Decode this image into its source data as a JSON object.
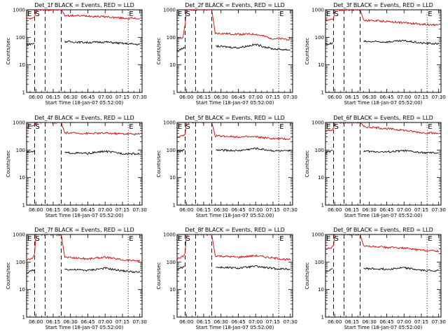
{
  "colors": {
    "events": "#000000",
    "lld": "#d40000",
    "axis": "#000000",
    "background": "#ffffff"
  },
  "layout_info": {
    "rows": 3,
    "cols": 3,
    "scale": "log"
  },
  "panels": [
    {
      "title": "Det_1f BLACK = Events, RED = LLD",
      "xlabel": "Start Time (18-Jan-07 05:52:00)",
      "ylabel": "Counts/sec",
      "x_tick_labels": [
        "06:00",
        "06:15",
        "06:30",
        "06:45",
        "07:00",
        "07:15",
        "07:30"
      ],
      "y_tick_labels": [
        "1",
        "10",
        "100",
        "1000"
      ],
      "markers": [
        "E",
        "S",
        "E"
      ]
    },
    {
      "title": "Det_2f BLACK = Events, RED = LLD",
      "xlabel": "Start Time (18-Jan-07 05:52:00)",
      "ylabel": "Counts/sec",
      "x_tick_labels": [
        "06:00",
        "06:15",
        "06:30",
        "06:45",
        "07:00",
        "07:15",
        "07:30"
      ],
      "y_tick_labels": [
        "1",
        "10",
        "100",
        "1000"
      ],
      "markers": [
        "E",
        "S",
        "E"
      ]
    },
    {
      "title": "Det_3f BLACK = Events, RED = LLD",
      "xlabel": "Start Time (18-Jan-07 05:52:00)",
      "ylabel": "Counts/sec",
      "x_tick_labels": [
        "06:00",
        "06:15",
        "06:30",
        "06:45",
        "07:00",
        "07:15",
        "07:30"
      ],
      "y_tick_labels": [
        "1",
        "10",
        "100",
        "1000"
      ],
      "markers": [
        "E",
        "S",
        "E"
      ]
    },
    {
      "title": "Det_4f BLACK = Events, RED = LLD",
      "xlabel": "Start Time (18-Jan-07 05:52:00)",
      "ylabel": "Counts/sec",
      "x_tick_labels": [
        "06:00",
        "06:15",
        "06:30",
        "06:45",
        "07:00",
        "07:15",
        "07:30"
      ],
      "y_tick_labels": [
        "1",
        "10",
        "100",
        "1000"
      ],
      "markers": [
        "E",
        "S",
        "E"
      ]
    },
    {
      "title": "Det_5f BLACK = Events, RED = LLD",
      "xlabel": "Start Time (18-Jan-07 05:52:00)",
      "ylabel": "Counts/sec",
      "x_tick_labels": [
        "06:00",
        "06:15",
        "06:30",
        "06:45",
        "07:00",
        "07:15",
        "07:30"
      ],
      "y_tick_labels": [
        "1",
        "10",
        "100",
        "1000"
      ],
      "markers": [
        "E",
        "S",
        "E"
      ]
    },
    {
      "title": "Det_6f BLACK = Events, RED = LLD",
      "xlabel": "Start Time (18-Jan-07 05:52:00)",
      "ylabel": "Counts/sec",
      "x_tick_labels": [
        "06:00",
        "06:15",
        "06:30",
        "06:45",
        "07:00",
        "07:15",
        "07:30"
      ],
      "y_tick_labels": [
        "1",
        "10",
        "100",
        "1000"
      ],
      "markers": [
        "E",
        "S",
        "E"
      ]
    },
    {
      "title": "Det_7f BLACK = Events, RED = LLD",
      "xlabel": "Start Time (18-Jan-07 05:52:00)",
      "ylabel": "Counts/sec",
      "x_tick_labels": [
        "06:00",
        "06:15",
        "06:30",
        "06:45",
        "07:00",
        "07:15",
        "07:30"
      ],
      "y_tick_labels": [
        "1",
        "10",
        "100",
        "1000"
      ],
      "markers": [
        "E",
        "S",
        "E"
      ]
    },
    {
      "title": "Det_8f BLACK = Events, RED = LLD",
      "xlabel": "Start Time (18-Jan-07 05:52:00)",
      "ylabel": "Counts/sec",
      "x_tick_labels": [
        "06:00",
        "06:15",
        "06:30",
        "06:45",
        "07:00",
        "07:15",
        "07:30"
      ],
      "y_tick_labels": [
        "1",
        "10",
        "100",
        "1000"
      ],
      "markers": [
        "E",
        "S",
        "E"
      ]
    },
    {
      "title": "Det_9f BLACK = Events, RED = LLD",
      "xlabel": "Start Time (18-Jan-07 05:52:00)",
      "ylabel": "Counts/sec",
      "x_tick_labels": [
        "06:00",
        "06:15",
        "06:30",
        "06:45",
        "07:00",
        "07:15",
        "07:30"
      ],
      "y_tick_labels": [
        "1",
        "10",
        "100",
        "1000"
      ],
      "markers": [
        "E",
        "S",
        "E"
      ]
    }
  ],
  "chart_data": [
    {
      "type": "line",
      "title": "Det_1f BLACK = Events, RED = LLD",
      "xlabel": "Start Time (18-Jan-07 05:52:00)",
      "ylabel": "Counts/sec",
      "yscale": "log",
      "ylim": [
        1,
        1000
      ],
      "xlim": [
        "05:52",
        "07:32"
      ],
      "series": [
        {
          "name": "LLD",
          "color": "#d40000",
          "x": [
            "05:52",
            "05:57",
            "05:59",
            "06:00",
            "06:22",
            "06:25",
            "06:45",
            "07:00",
            "07:15",
            "07:30"
          ],
          "y": [
            480,
            480,
            520,
            1000,
            1000,
            620,
            600,
            560,
            500,
            480
          ]
        },
        {
          "name": "Events",
          "color": "#000000",
          "x": [
            "05:52",
            "05:57",
            "05:59",
            "06:25",
            "06:45",
            "07:00",
            "07:15",
            "07:30"
          ],
          "y": [
            55,
            58,
            62,
            70,
            65,
            68,
            60,
            55
          ]
        }
      ],
      "vlines_dashed": [
        "05:59",
        "06:08",
        "06:22"
      ],
      "vlines_dotted": [
        "07:20"
      ]
    },
    {
      "type": "line",
      "title": "Det_2f BLACK = Events, RED = LLD",
      "xlabel": "Start Time (18-Jan-07 05:52:00)",
      "ylabel": "Counts/sec",
      "yscale": "log",
      "ylim": [
        1,
        1000
      ],
      "xlim": [
        "05:52",
        "07:32"
      ],
      "series": [
        {
          "name": "LLD",
          "color": "#d40000",
          "x": [
            "05:52",
            "05:57",
            "05:59",
            "06:00",
            "06:22",
            "06:25",
            "06:45",
            "07:00",
            "07:15",
            "07:30"
          ],
          "y": [
            85,
            100,
            300,
            1000,
            1000,
            140,
            130,
            130,
            90,
            85
          ]
        },
        {
          "name": "Events",
          "color": "#000000",
          "x": [
            "05:52",
            "05:57",
            "05:59",
            "06:25",
            "06:45",
            "07:00",
            "07:15",
            "07:30"
          ],
          "y": [
            32,
            40,
            45,
            48,
            42,
            55,
            38,
            35
          ]
        }
      ],
      "vlines_dashed": [
        "05:59",
        "06:08",
        "06:22"
      ],
      "vlines_dotted": [
        "07:20"
      ]
    },
    {
      "type": "line",
      "title": "Det_3f BLACK = Events, RED = LLD",
      "xlabel": "Start Time (18-Jan-07 05:52:00)",
      "ylabel": "Counts/sec",
      "yscale": "log",
      "ylim": [
        1,
        1000
      ],
      "xlim": [
        "05:52",
        "07:32"
      ],
      "series": [
        {
          "name": "LLD",
          "color": "#d40000",
          "x": [
            "05:52",
            "05:57",
            "05:59",
            "06:00",
            "06:22",
            "06:25",
            "06:45",
            "07:00",
            "07:15",
            "07:30"
          ],
          "y": [
            420,
            450,
            500,
            1000,
            1000,
            420,
            380,
            340,
            300,
            280
          ]
        },
        {
          "name": "Events",
          "color": "#000000",
          "x": [
            "05:52",
            "05:57",
            "05:59",
            "06:25",
            "06:45",
            "07:00",
            "07:15",
            "07:30"
          ],
          "y": [
            55,
            60,
            68,
            70,
            68,
            75,
            62,
            58
          ]
        }
      ],
      "vlines_dashed": [
        "05:59",
        "06:08",
        "06:22"
      ],
      "vlines_dotted": [
        "07:20"
      ]
    },
    {
      "type": "line",
      "title": "Det_4f BLACK = Events, RED = LLD",
      "xlabel": "Start Time (18-Jan-07 05:52:00)",
      "ylabel": "Counts/sec",
      "yscale": "log",
      "ylim": [
        1,
        1000
      ],
      "xlim": [
        "05:52",
        "07:32"
      ],
      "series": [
        {
          "name": "LLD",
          "color": "#d40000",
          "x": [
            "05:52",
            "05:57",
            "05:59",
            "06:00",
            "06:22",
            "06:25",
            "06:45",
            "07:00",
            "07:15",
            "07:30"
          ],
          "y": [
            700,
            750,
            800,
            1000,
            1000,
            420,
            400,
            410,
            390,
            380
          ]
        },
        {
          "name": "Events",
          "color": "#000000",
          "x": [
            "05:52",
            "05:57",
            "05:59",
            "06:25",
            "06:45",
            "07:00",
            "07:15",
            "07:30"
          ],
          "y": [
            80,
            90,
            95,
            80,
            75,
            90,
            75,
            72
          ]
        }
      ],
      "vlines_dashed": [
        "05:59",
        "06:08",
        "06:22"
      ],
      "vlines_dotted": [
        "07:20"
      ]
    },
    {
      "type": "line",
      "title": "Det_5f BLACK = Events, RED = LLD",
      "xlabel": "Start Time (18-Jan-07 05:52:00)",
      "ylabel": "Counts/sec",
      "yscale": "log",
      "ylim": [
        1,
        1000
      ],
      "xlim": [
        "05:52",
        "07:32"
      ],
      "series": [
        {
          "name": "LLD",
          "color": "#d40000",
          "x": [
            "05:52",
            "05:57",
            "05:59",
            "06:00",
            "06:22",
            "06:25",
            "06:45",
            "07:00",
            "07:15",
            "07:30"
          ],
          "y": [
            300,
            320,
            380,
            1000,
            1000,
            330,
            300,
            300,
            260,
            250
          ]
        },
        {
          "name": "Events",
          "color": "#000000",
          "x": [
            "05:52",
            "05:57",
            "05:59",
            "06:25",
            "06:45",
            "07:00",
            "07:15",
            "07:30"
          ],
          "y": [
            85,
            95,
            105,
            100,
            95,
            115,
            95,
            90
          ]
        }
      ],
      "vlines_dashed": [
        "05:59",
        "06:08",
        "06:22"
      ],
      "vlines_dotted": [
        "07:20"
      ]
    },
    {
      "type": "line",
      "title": "Det_6f BLACK = Events, RED = LLD",
      "xlabel": "Start Time (18-Jan-07 05:52:00)",
      "ylabel": "Counts/sec",
      "yscale": "log",
      "ylim": [
        1,
        1000
      ],
      "xlim": [
        "05:52",
        "07:32"
      ],
      "series": [
        {
          "name": "LLD",
          "color": "#d40000",
          "x": [
            "05:52",
            "05:57",
            "05:59",
            "06:00",
            "06:22",
            "06:25",
            "06:45",
            "07:00",
            "07:15",
            "07:30"
          ],
          "y": [
            500,
            520,
            600,
            1000,
            1000,
            700,
            600,
            520,
            430,
            400
          ]
        },
        {
          "name": "Events",
          "color": "#000000",
          "x": [
            "05:52",
            "05:57",
            "05:59",
            "06:25",
            "06:45",
            "07:00",
            "07:15",
            "07:30"
          ],
          "y": [
            80,
            90,
            100,
            90,
            85,
            95,
            80,
            78
          ]
        }
      ],
      "vlines_dashed": [
        "05:59",
        "06:08",
        "06:22"
      ],
      "vlines_dotted": [
        "07:20"
      ]
    },
    {
      "type": "line",
      "title": "Det_7f BLACK = Events, RED = LLD",
      "xlabel": "Start Time (18-Jan-07 05:52:00)",
      "ylabel": "Counts/sec",
      "yscale": "log",
      "ylim": [
        1,
        1000
      ],
      "xlim": [
        "05:52",
        "07:32"
      ],
      "series": [
        {
          "name": "LLD",
          "color": "#d40000",
          "x": [
            "05:52",
            "05:57",
            "05:59",
            "06:00",
            "06:22",
            "06:25",
            "06:45",
            "07:00",
            "07:15",
            "07:30"
          ],
          "y": [
            120,
            140,
            200,
            1000,
            1000,
            150,
            130,
            150,
            120,
            110
          ]
        },
        {
          "name": "Events",
          "color": "#000000",
          "x": [
            "05:52",
            "05:57",
            "05:59",
            "06:25",
            "06:45",
            "07:00",
            "07:15",
            "07:30"
          ],
          "y": [
            40,
            50,
            55,
            55,
            50,
            60,
            48,
            42
          ]
        }
      ],
      "vlines_dashed": [
        "05:59",
        "06:08",
        "06:22"
      ],
      "vlines_dotted": [
        "07:20"
      ]
    },
    {
      "type": "line",
      "title": "Det_8f BLACK = Events, RED = LLD",
      "xlabel": "Start Time (18-Jan-07 05:52:00)",
      "ylabel": "Counts/sec",
      "yscale": "log",
      "ylim": [
        1,
        1000
      ],
      "xlim": [
        "05:52",
        "07:32"
      ],
      "series": [
        {
          "name": "LLD",
          "color": "#d40000",
          "x": [
            "05:52",
            "05:57",
            "05:59",
            "06:00",
            "06:22",
            "06:25",
            "06:45",
            "07:00",
            "07:15",
            "07:30"
          ],
          "y": [
            130,
            160,
            220,
            1000,
            1000,
            170,
            150,
            170,
            140,
            120
          ]
        },
        {
          "name": "Events",
          "color": "#000000",
          "x": [
            "05:52",
            "05:57",
            "05:59",
            "06:25",
            "06:45",
            "07:00",
            "07:15",
            "07:30"
          ],
          "y": [
            55,
            65,
            75,
            65,
            60,
            70,
            58,
            55
          ]
        }
      ],
      "vlines_dashed": [
        "05:59",
        "06:08",
        "06:22"
      ],
      "vlines_dotted": [
        "07:20"
      ]
    },
    {
      "type": "line",
      "title": "Det_9f BLACK = Events, RED = LLD",
      "xlabel": "Start Time (18-Jan-07 05:52:00)",
      "ylabel": "Counts/sec",
      "yscale": "log",
      "ylim": [
        1,
        1000
      ],
      "xlim": [
        "05:52",
        "07:32"
      ],
      "series": [
        {
          "name": "LLD",
          "color": "#d40000",
          "x": [
            "05:52",
            "05:57",
            "05:59",
            "06:00",
            "06:22",
            "06:25",
            "06:45",
            "07:00",
            "07:15",
            "07:30"
          ],
          "y": [
            300,
            330,
            400,
            1000,
            1000,
            380,
            340,
            320,
            270,
            250
          ]
        },
        {
          "name": "Events",
          "color": "#000000",
          "x": [
            "05:52",
            "05:57",
            "05:59",
            "06:25",
            "06:45",
            "07:00",
            "07:15",
            "07:30"
          ],
          "y": [
            45,
            55,
            60,
            58,
            55,
            62,
            50,
            48
          ]
        }
      ],
      "vlines_dashed": [
        "05:59",
        "06:08",
        "06:22"
      ],
      "vlines_dotted": [
        "07:20"
      ]
    }
  ]
}
